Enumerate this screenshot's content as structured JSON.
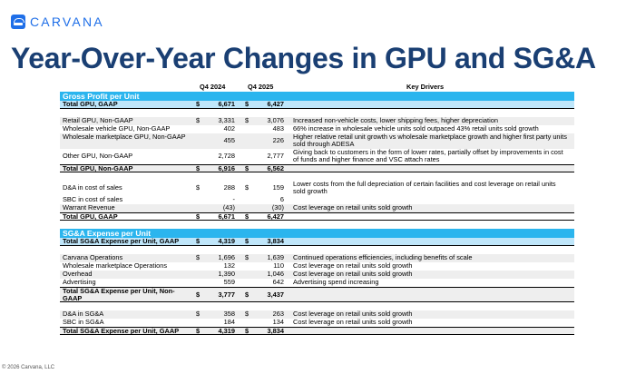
{
  "logo": {
    "text": "CARVANA"
  },
  "title": "Year-Over-Year Changes in GPU and SG&A",
  "footer": "© 2026 Carvana, LLC",
  "columns": {
    "q1": "Q4 2024",
    "q2": "Q4 2025",
    "drivers": "Key Drivers"
  },
  "gpu_section": {
    "title": "Gross Profit per Unit",
    "rows": [
      {
        "label": "Total GPU, GAAP",
        "d1": "$",
        "v1": "6,671",
        "d2": "$",
        "v2": "6,427",
        "note": ""
      },
      {
        "label": "Retail GPU, Non-GAAP",
        "d1": "$",
        "v1": "3,331",
        "d2": "$",
        "v2": "3,076",
        "note": "Increased non-vehicle costs, lower shipping fees, higher depreciation"
      },
      {
        "label": "Wholesale vehicle GPU, Non-GAAP",
        "d1": "",
        "v1": "402",
        "d2": "",
        "v2": "483",
        "note": "66% increase in wholesale vehicle units sold outpaced 43% retail units sold growth"
      },
      {
        "label": "Wholesale marketplace GPU, Non-GAAP",
        "d1": "",
        "v1": "455",
        "d2": "",
        "v2": "226",
        "note": "Higher relative retail unit growth vs wholesale marketplace growth and higher first party units sold through ADESA"
      },
      {
        "label": "Other GPU, Non-GAAP",
        "d1": "",
        "v1": "2,728",
        "d2": "",
        "v2": "2,777",
        "note": "Giving back to customers in the form of lower rates, partially offset by improvements in cost of funds and higher finance and VSC attach rates"
      },
      {
        "label": "Total GPU, Non-GAAP",
        "d1": "$",
        "v1": "6,916",
        "d2": "$",
        "v2": "6,562",
        "note": ""
      },
      {
        "label": "D&A in cost of sales",
        "d1": "$",
        "v1": "288",
        "d2": "$",
        "v2": "159",
        "note": "Lower costs from the full depreciation of certain facilities and cost leverage on retail units sold growth"
      },
      {
        "label": "SBC in cost of sales",
        "d1": "",
        "v1": "-",
        "d2": "",
        "v2": "6",
        "note": ""
      },
      {
        "label": "Warrant Revenue",
        "d1": "",
        "v1": "(43)",
        "d2": "",
        "v2": "(30)",
        "note": "Cost leverage on retail units sold growth"
      },
      {
        "label": "Total GPU, GAAP",
        "d1": "$",
        "v1": "6,671",
        "d2": "$",
        "v2": "6,427",
        "note": ""
      }
    ]
  },
  "sga_section": {
    "title": "SG&A Expense per Unit",
    "rows": [
      {
        "label": "Total SG&A Expense per Unit, GAAP",
        "d1": "$",
        "v1": "4,319",
        "d2": "$",
        "v2": "3,834",
        "note": ""
      },
      {
        "label": "Carvana Operations",
        "d1": "$",
        "v1": "1,696",
        "d2": "$",
        "v2": "1,639",
        "note": "Continued operations efficiencies, including benefits of scale"
      },
      {
        "label": "Wholesale marketplace Operations",
        "d1": "",
        "v1": "132",
        "d2": "",
        "v2": "110",
        "note": "Cost leverage on retail units sold growth"
      },
      {
        "label": "Overhead",
        "d1": "",
        "v1": "1,390",
        "d2": "",
        "v2": "1,046",
        "note": "Cost leverage on retail units sold growth"
      },
      {
        "label": "Advertising",
        "d1": "",
        "v1": "559",
        "d2": "",
        "v2": "642",
        "note": "Advertising spend increasing"
      },
      {
        "label": "Total SG&A Expense per Unit, Non-GAAP",
        "d1": "$",
        "v1": "3,777",
        "d2": "$",
        "v2": "3,437",
        "note": ""
      },
      {
        "label": "D&A in SG&A",
        "d1": "$",
        "v1": "358",
        "d2": "$",
        "v2": "263",
        "note": "Cost leverage on retail units sold growth"
      },
      {
        "label": "SBC in SG&A",
        "d1": "",
        "v1": "184",
        "d2": "",
        "v2": "134",
        "note": "Cost leverage on retail units sold growth"
      },
      {
        "label": "Total SG&A Expense per Unit, GAAP",
        "d1": "$",
        "v1": "4,319",
        "d2": "$",
        "v2": "3,834",
        "note": ""
      }
    ]
  }
}
